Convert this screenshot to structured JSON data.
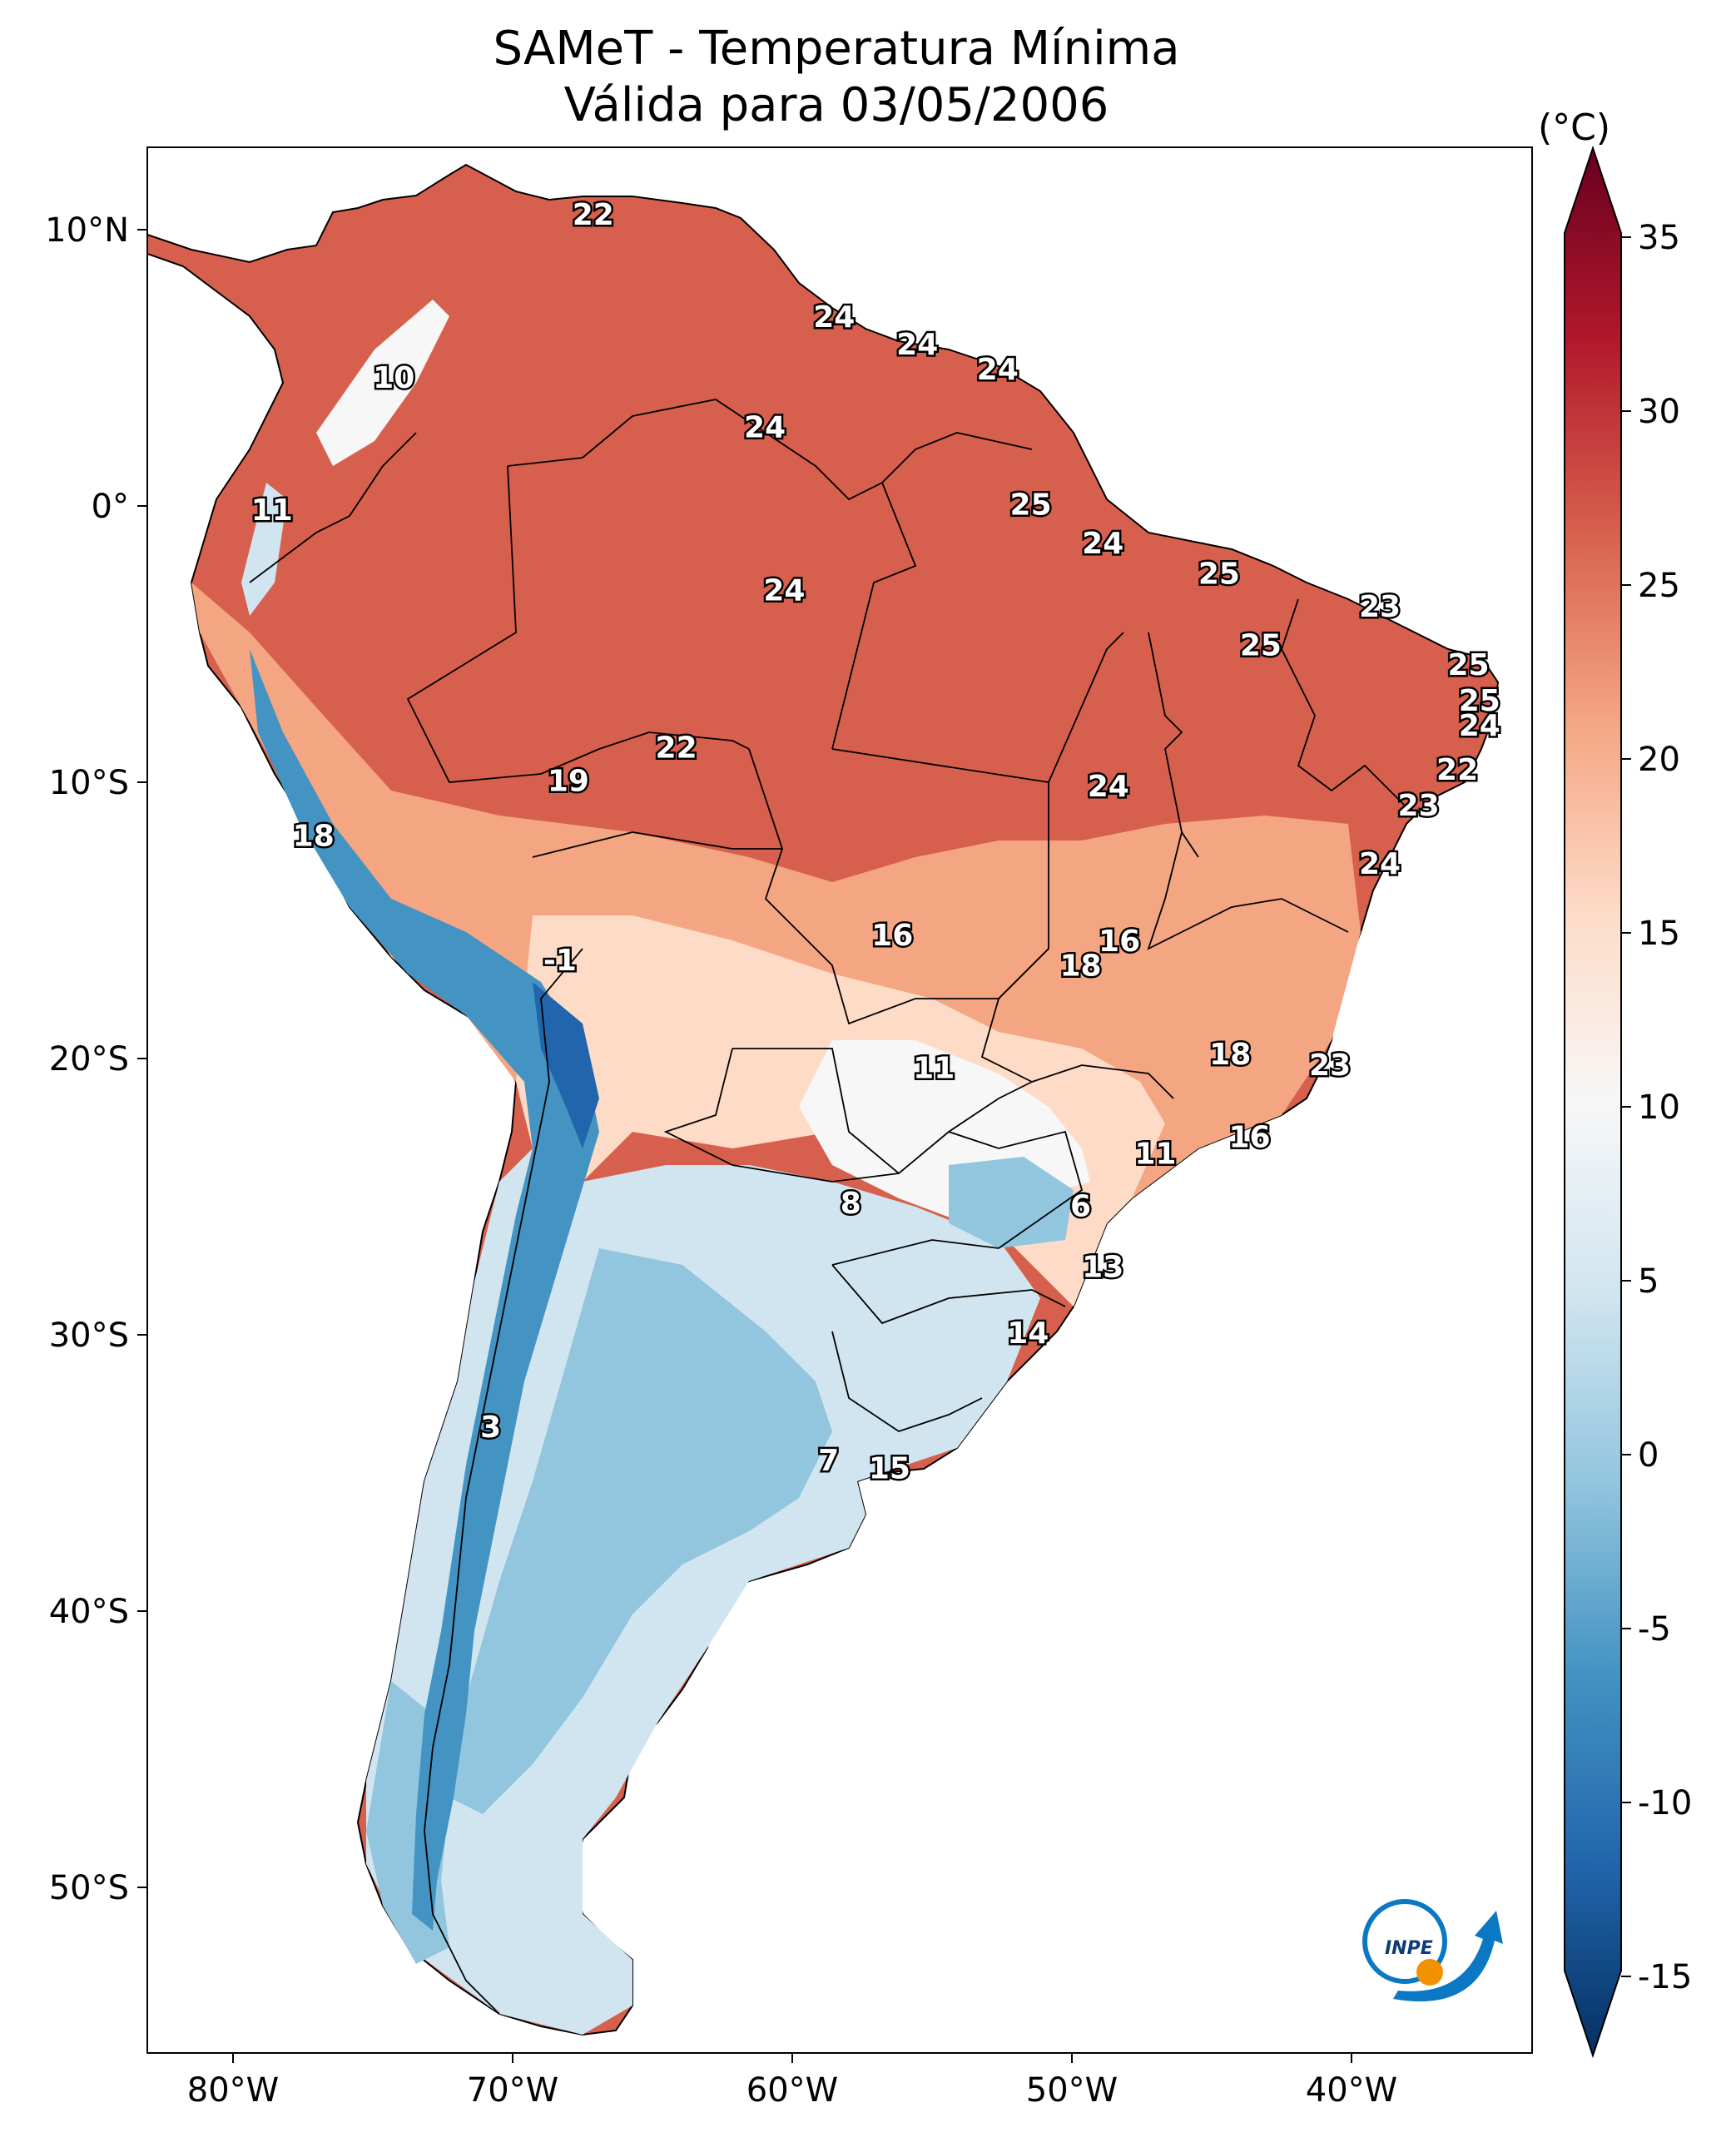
{
  "title": {
    "line1": "SAMeT - Temperatura Mínima",
    "line2": "Válida para 03/05/2006"
  },
  "colorbar": {
    "unit": "(°C)",
    "ticks": [
      "35",
      "30",
      "25",
      "20",
      "15",
      "10",
      "5",
      "0",
      "-5",
      "-10",
      "-15"
    ],
    "range": [
      -17,
      37
    ],
    "colors": [
      "#053061",
      "#2166ac",
      "#4393c3",
      "#92c5de",
      "#d1e5f0",
      "#f7f7f7",
      "#fddbc7",
      "#f4a582",
      "#d6604d",
      "#b2182b",
      "#67001f"
    ]
  },
  "axes": {
    "longitude_labels": [
      "80°W",
      "70°W",
      "60°W",
      "50°W",
      "40°W"
    ],
    "latitude_labels": [
      "10°N",
      "0°",
      "10°S",
      "20°S",
      "30°S",
      "40°S",
      "50°S"
    ],
    "lon_range": [
      -83,
      -33
    ],
    "lat_range": [
      -56,
      13
    ]
  },
  "map": {
    "palette": {
      "ocean": "#ffffff",
      "hot": "#d6604d",
      "warm": "#f4a582",
      "mild": "#fddbc7",
      "neutral": "#f7f7f7",
      "cool": "#d1e5f0",
      "cold": "#92c5de",
      "frigid": "#4393c3",
      "border": "#000000"
    },
    "values": [
      {
        "text": "22",
        "lon": -66.9,
        "lat": 10.5
      },
      {
        "text": "10",
        "lon": -74.1,
        "lat": 4.6
      },
      {
        "text": "24",
        "lon": -58.2,
        "lat": 6.8
      },
      {
        "text": "24",
        "lon": -55.2,
        "lat": 5.8
      },
      {
        "text": "24",
        "lon": -52.3,
        "lat": 4.9
      },
      {
        "text": "24",
        "lon": -60.7,
        "lat": 2.8
      },
      {
        "text": "11",
        "lon": -78.5,
        "lat": -0.2
      },
      {
        "text": "25",
        "lon": -51.1,
        "lat": 0.0
      },
      {
        "text": "24",
        "lon": -48.5,
        "lat": -1.4
      },
      {
        "text": "25",
        "lon": -44.3,
        "lat": -2.5
      },
      {
        "text": "24",
        "lon": -60.0,
        "lat": -3.1
      },
      {
        "text": "23",
        "lon": -38.5,
        "lat": -3.7
      },
      {
        "text": "25",
        "lon": -42.8,
        "lat": -5.1
      },
      {
        "text": "25",
        "lon": -35.3,
        "lat": -5.8
      },
      {
        "text": "25",
        "lon": -34.9,
        "lat": -7.1
      },
      {
        "text": "24",
        "lon": -34.9,
        "lat": -8.0
      },
      {
        "text": "22",
        "lon": -63.9,
        "lat": -8.8
      },
      {
        "text": "22",
        "lon": -35.7,
        "lat": -9.6
      },
      {
        "text": "19",
        "lon": -67.8,
        "lat": -10.0
      },
      {
        "text": "24",
        "lon": -48.3,
        "lat": -10.2
      },
      {
        "text": "23",
        "lon": -37.1,
        "lat": -10.9
      },
      {
        "text": "18",
        "lon": -77.0,
        "lat": -12.0
      },
      {
        "text": "24",
        "lon": -38.5,
        "lat": -13.0
      },
      {
        "text": "16",
        "lon": -56.1,
        "lat": -15.6
      },
      {
        "text": "16",
        "lon": -47.9,
        "lat": -15.8
      },
      {
        "text": "-1",
        "lon": -68.1,
        "lat": -16.5
      },
      {
        "text": "18",
        "lon": -49.3,
        "lat": -16.7
      },
      {
        "text": "18",
        "lon": -43.9,
        "lat": -19.9
      },
      {
        "text": "23",
        "lon": -40.3,
        "lat": -20.3
      },
      {
        "text": "11",
        "lon": -54.6,
        "lat": -20.4
      },
      {
        "text": "16",
        "lon": -43.2,
        "lat": -22.9
      },
      {
        "text": "11",
        "lon": -46.6,
        "lat": -23.5
      },
      {
        "text": "8",
        "lon": -57.6,
        "lat": -25.3
      },
      {
        "text": "6",
        "lon": -49.3,
        "lat": -25.4
      },
      {
        "text": "13",
        "lon": -48.5,
        "lat": -27.6
      },
      {
        "text": "14",
        "lon": -51.2,
        "lat": -30.0
      },
      {
        "text": "3",
        "lon": -70.6,
        "lat": -33.4
      },
      {
        "text": "7",
        "lon": -58.4,
        "lat": -34.6
      },
      {
        "text": "15",
        "lon": -56.2,
        "lat": -34.9
      }
    ]
  },
  "logo": {
    "text": "INPE",
    "colors": {
      "blue": "#0a78c2",
      "orange": "#f39200"
    }
  }
}
